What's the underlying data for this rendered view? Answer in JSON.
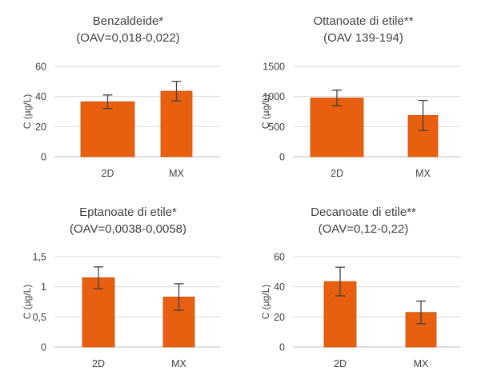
{
  "colors": {
    "bar": "#E8600F",
    "bar_edge": "#C9500A",
    "error_bar": "#404040",
    "gridline": "#D9D9D9",
    "axis": "#BFBFBF"
  },
  "chart_data": [
    {
      "type": "bar",
      "title": "Benzaldeide*",
      "subtitle": "(OAV=0,018-0,022)",
      "ylabel": "C (µg/L)",
      "xlabel": "",
      "categories": [
        "2D",
        "MX"
      ],
      "values": [
        36.5,
        43.5
      ],
      "errors": [
        4.5,
        6.5
      ],
      "ylim": [
        0,
        60
      ],
      "yticks": [
        0,
        20,
        40,
        60
      ],
      "ytick_labels": [
        "0",
        "20",
        "40",
        "60"
      ],
      "grid": true
    },
    {
      "type": "bar",
      "title": "Ottanoate di etile**",
      "subtitle": "(OAV 139-194)",
      "ylabel": "C (µg/L)",
      "xlabel": "",
      "categories": [
        "2D",
        "MX"
      ],
      "values": [
        975,
        685
      ],
      "errors": [
        130,
        250
      ],
      "ylim": [
        0,
        1500
      ],
      "yticks": [
        0,
        500,
        1000,
        1500
      ],
      "ytick_labels": [
        "0",
        "500",
        "1000",
        "1500"
      ],
      "grid": true
    },
    {
      "type": "bar",
      "title": "Eptanoate di etile*",
      "subtitle": "(OAV=0,0038-0,0058)",
      "ylabel": "C (µg/L)",
      "xlabel": "",
      "categories": [
        "2D",
        "MX"
      ],
      "values": [
        1.15,
        0.83
      ],
      "errors": [
        0.18,
        0.22
      ],
      "ylim": [
        0,
        1.5
      ],
      "yticks": [
        0,
        0.5,
        1,
        1.5
      ],
      "ytick_labels": [
        "0",
        "0,5",
        "1",
        "1,5"
      ],
      "grid": true
    },
    {
      "type": "bar",
      "title": "Decanoate di etile**",
      "subtitle": "(OAV=0,12-0,22)",
      "ylabel": "C (µg/L)",
      "xlabel": "",
      "categories": [
        "2D",
        "MX"
      ],
      "values": [
        43.5,
        23
      ],
      "errors": [
        9.5,
        7.5
      ],
      "ylim": [
        0,
        60
      ],
      "yticks": [
        0,
        20,
        40,
        60
      ],
      "ytick_labels": [
        "0",
        "20",
        "40",
        "60"
      ],
      "grid": true
    }
  ]
}
